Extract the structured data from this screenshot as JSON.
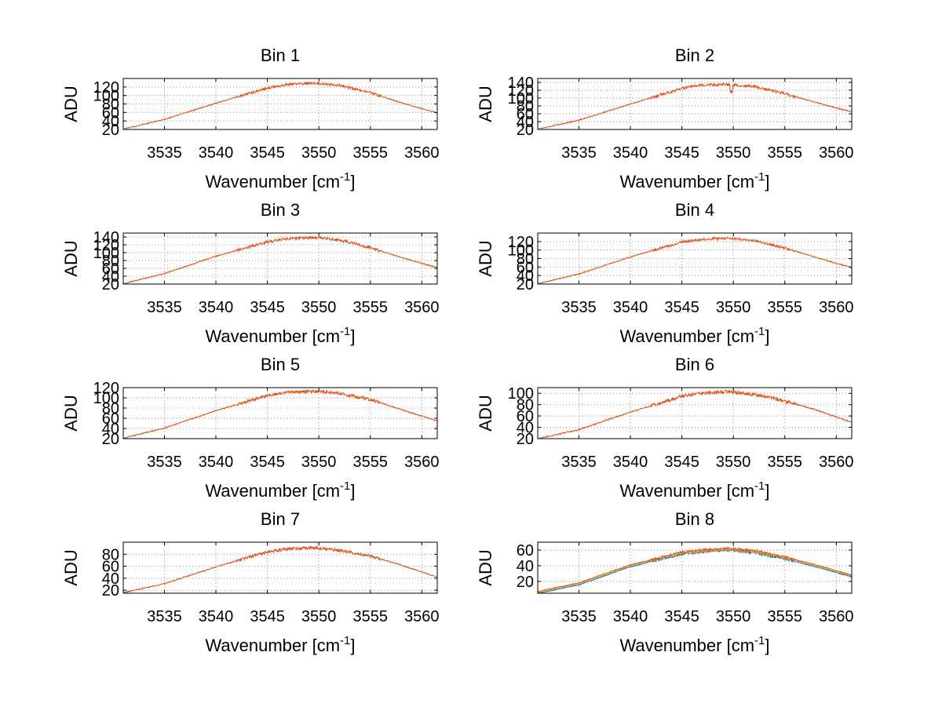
{
  "figure": {
    "background": "#ffffff"
  },
  "style": {
    "line_colors": [
      "#0072bd",
      "#edb120",
      "#d95319"
    ],
    "grid_color": "#8a8a8a"
  },
  "chart_data": [
    {
      "type": "line",
      "title": "Bin 1",
      "xlabel": "Wavenumber [cm",
      "xlabel_sup": "-1",
      "xlabel_end": "]",
      "ylabel": "ADU",
      "xlim": [
        3531,
        3561.5
      ],
      "ylim": [
        20,
        140
      ],
      "xticks": [
        3535,
        3540,
        3545,
        3550,
        3555,
        3560
      ],
      "yticks": [
        20,
        40,
        60,
        80,
        100,
        120
      ],
      "grid": true,
      "profile": {
        "x": [
          3531,
          3535,
          3540,
          3545,
          3547,
          3549.5,
          3552,
          3555,
          3558,
          3561.5
        ],
        "y": [
          22,
          45,
          83,
          119,
          127,
          131,
          125,
          108,
          84,
          60
        ]
      },
      "noise": 3,
      "series_count": 1
    },
    {
      "type": "line",
      "title": "Bin 2",
      "xlabel": "Wavenumber [cm",
      "xlabel_sup": "-1",
      "xlabel_end": "]",
      "ylabel": "ADU",
      "xlim": [
        3531,
        3561.5
      ],
      "ylim": [
        20,
        150
      ],
      "xticks": [
        3535,
        3540,
        3545,
        3550,
        3555,
        3560
      ],
      "yticks": [
        20,
        40,
        60,
        80,
        100,
        120,
        140
      ],
      "grid": true,
      "profile": {
        "x": [
          3531,
          3535,
          3540,
          3545,
          3547,
          3549.5,
          3552,
          3555,
          3558,
          3561.5
        ],
        "y": [
          22,
          45,
          86,
          126,
          134,
          136,
          131,
          113,
          90,
          66
        ]
      },
      "noise": 3.5,
      "dip": {
        "x": 3549.8,
        "depth": 18
      },
      "series_count": 1
    },
    {
      "type": "line",
      "title": "Bin 3",
      "xlabel": "Wavenumber [cm",
      "xlabel_sup": "-1",
      "xlabel_end": "]",
      "ylabel": "ADU",
      "xlim": [
        3531,
        3561.5
      ],
      "ylim": [
        20,
        150
      ],
      "xticks": [
        3535,
        3540,
        3545,
        3550,
        3555,
        3560
      ],
      "yticks": [
        20,
        40,
        60,
        80,
        100,
        120,
        140
      ],
      "grid": true,
      "profile": {
        "x": [
          3531,
          3535,
          3540,
          3545,
          3547,
          3549.5,
          3552,
          3555,
          3558,
          3561.5
        ],
        "y": [
          22,
          48,
          92,
          129,
          137,
          140,
          134,
          114,
          89,
          63
        ]
      },
      "noise": 3.5,
      "series_count": 1
    },
    {
      "type": "line",
      "title": "Bin 4",
      "xlabel": "Wavenumber [cm",
      "xlabel_sup": "-1",
      "xlabel_end": "]",
      "ylabel": "ADU",
      "xlim": [
        3531,
        3561.5
      ],
      "ylim": [
        20,
        140
      ],
      "xticks": [
        3535,
        3540,
        3545,
        3550,
        3555,
        3560
      ],
      "yticks": [
        20,
        40,
        60,
        80,
        100,
        120
      ],
      "grid": true,
      "profile": {
        "x": [
          3531,
          3535,
          3540,
          3545,
          3547,
          3549.5,
          3552,
          3555,
          3558,
          3561.5
        ],
        "y": [
          22,
          45,
          85,
          120,
          126,
          130,
          123,
          106,
          84,
          60
        ]
      },
      "noise": 3,
      "series_count": 1
    },
    {
      "type": "line",
      "title": "Bin 5",
      "xlabel": "Wavenumber [cm",
      "xlabel_sup": "-1",
      "xlabel_end": "]",
      "ylabel": "ADU",
      "xlim": [
        3531,
        3561.5
      ],
      "ylim": [
        20,
        120
      ],
      "xticks": [
        3535,
        3540,
        3545,
        3550,
        3555,
        3560
      ],
      "yticks": [
        20,
        40,
        60,
        80,
        100,
        120
      ],
      "grid": true,
      "profile": {
        "x": [
          3531,
          3535,
          3540,
          3545,
          3547,
          3549.5,
          3552,
          3555,
          3558,
          3561.5
        ],
        "y": [
          22,
          42,
          76,
          106,
          112,
          114,
          110,
          98,
          78,
          56
        ]
      },
      "noise": 3,
      "series_count": 1
    },
    {
      "type": "line",
      "title": "Bin 6",
      "xlabel": "Wavenumber [cm",
      "xlabel_sup": "-1",
      "xlabel_end": "]",
      "ylabel": "ADU",
      "xlim": [
        3531,
        3561.5
      ],
      "ylim": [
        20,
        110
      ],
      "xticks": [
        3535,
        3540,
        3545,
        3550,
        3555,
        3560
      ],
      "yticks": [
        20,
        40,
        60,
        80,
        100
      ],
      "grid": true,
      "profile": {
        "x": [
          3531,
          3535,
          3540,
          3545,
          3547,
          3549.5,
          3552,
          3555,
          3558,
          3561.5
        ],
        "y": [
          21,
          37,
          68,
          96,
          102,
          104,
          99,
          88,
          72,
          50
        ]
      },
      "noise": 3,
      "series_count": 1
    },
    {
      "type": "line",
      "title": "Bin 7",
      "xlabel": "Wavenumber [cm",
      "xlabel_sup": "-1",
      "xlabel_end": "]",
      "ylabel": "ADU",
      "xlim": [
        3531,
        3561.5
      ],
      "ylim": [
        15,
        100
      ],
      "xticks": [
        3535,
        3540,
        3545,
        3550,
        3555,
        3560
      ],
      "yticks": [
        20,
        40,
        60,
        80
      ],
      "grid": true,
      "profile": {
        "x": [
          3531,
          3535,
          3540,
          3545,
          3547,
          3549.5,
          3552,
          3555,
          3558,
          3561.5
        ],
        "y": [
          17,
          32,
          60,
          85,
          90,
          92,
          88,
          78,
          63,
          43
        ]
      },
      "noise": 2.5,
      "series_count": 1
    },
    {
      "type": "line",
      "title": "Bin 8",
      "xlabel": "Wavenumber [cm",
      "xlabel_sup": "-1",
      "xlabel_end": "]",
      "ylabel": "ADU",
      "xlim": [
        3531,
        3561.5
      ],
      "ylim": [
        5,
        70
      ],
      "xticks": [
        3535,
        3540,
        3545,
        3550,
        3555,
        3560
      ],
      "yticks": [
        20,
        40,
        60
      ],
      "grid": true,
      "profile": {
        "x": [
          3531,
          3535,
          3540,
          3545,
          3547,
          3549.5,
          3552,
          3555,
          3558,
          3561.5
        ],
        "y": [
          6,
          17,
          40,
          56,
          59,
          61,
          58,
          50,
          40,
          27
        ]
      },
      "noise": 1.5,
      "series_count": 3
    }
  ]
}
